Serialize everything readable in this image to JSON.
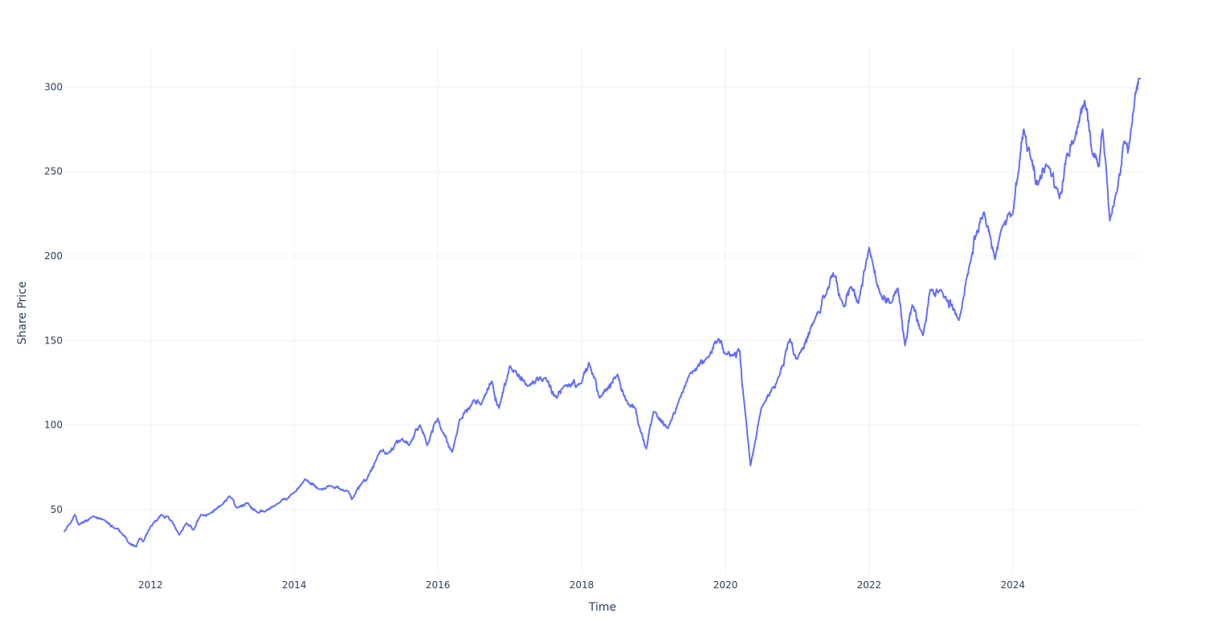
{
  "chart_data": {
    "type": "line",
    "title": "",
    "xlabel": "Time",
    "ylabel": "Share Price",
    "xlim": [
      2010.8,
      2025.78
    ],
    "ylim": [
      12,
      323
    ],
    "grid": true,
    "x_ticks": [
      2012,
      2014,
      2016,
      2018,
      2020,
      2022,
      2024
    ],
    "x_tick_labels": [
      "2012",
      "2014",
      "2016",
      "2018",
      "2020",
      "2022",
      "2024"
    ],
    "y_ticks": [
      50,
      100,
      150,
      200,
      250,
      300
    ],
    "y_tick_labels": [
      "50",
      "100",
      "150",
      "200",
      "250",
      "300"
    ],
    "series": [
      {
        "color": "#636efa",
        "x": [
          2010.8,
          2010.9,
          2010.95,
          2011.0,
          2011.2,
          2011.35,
          2011.5,
          2011.6,
          2011.7,
          2011.8,
          2011.85,
          2011.9,
          2012.0,
          2012.1,
          2012.15,
          2012.3,
          2012.4,
          2012.5,
          2012.6,
          2012.7,
          2012.8,
          2013.0,
          2013.1,
          2013.2,
          2013.35,
          2013.5,
          2013.6,
          2013.75,
          2014.0,
          2014.15,
          2014.35,
          2014.5,
          2014.75,
          2014.8,
          2014.95,
          2015.0,
          2015.2,
          2015.3,
          2015.5,
          2015.6,
          2015.75,
          2015.85,
          2016.0,
          2016.05,
          2016.2,
          2016.3,
          2016.5,
          2016.6,
          2016.75,
          2016.85,
          2017.0,
          2017.25,
          2017.5,
          2017.65,
          2017.75,
          2018.0,
          2018.1,
          2018.25,
          2018.5,
          2018.65,
          2018.75,
          2018.82,
          2018.9,
          2019.0,
          2019.2,
          2019.35,
          2019.5,
          2019.75,
          2019.9,
          2020.0,
          2020.1,
          2020.2,
          2020.25,
          2020.35,
          2020.5,
          2020.75,
          2020.9,
          2021.0,
          2021.25,
          2021.4,
          2021.5,
          2021.65,
          2021.75,
          2021.85,
          2022.0,
          2022.15,
          2022.3,
          2022.4,
          2022.5,
          2022.6,
          2022.75,
          2022.85,
          2023.0,
          2023.25,
          2023.4,
          2023.5,
          2023.6,
          2023.75,
          2023.85,
          2024.0,
          2024.1,
          2024.15,
          2024.25,
          2024.35,
          2024.5,
          2024.65,
          2024.75,
          2024.85,
          2025.0,
          2025.1,
          2025.2,
          2025.25,
          2025.35,
          2025.45,
          2025.55,
          2025.6,
          2025.7,
          2025.77
        ],
        "y": [
          37,
          43,
          47,
          41,
          46,
          44,
          39,
          36,
          30,
          28,
          33,
          31,
          40,
          44,
          47,
          43,
          35,
          42,
          38,
          47,
          47,
          53,
          58,
          51,
          54,
          48,
          49,
          53,
          60,
          68,
          62,
          64,
          61,
          56,
          66,
          67,
          85,
          83,
          92,
          88,
          100,
          88,
          104,
          97,
          84,
          103,
          115,
          112,
          126,
          110,
          135,
          123,
          128,
          116,
          123,
          125,
          137,
          116,
          130,
          112,
          110,
          96,
          86,
          108,
          98,
          114,
          130,
          140,
          151,
          142,
          141,
          144,
          118,
          76,
          110,
          129,
          151,
          139,
          163,
          177,
          190,
          170,
          182,
          172,
          205,
          178,
          172,
          181,
          147,
          171,
          153,
          180,
          180,
          162,
          195,
          215,
          226,
          198,
          217,
          225,
          258,
          275,
          258,
          242,
          253,
          234,
          260,
          268,
          292,
          262,
          253,
          275,
          221,
          238,
          268,
          261,
          295,
          305
        ]
      }
    ]
  }
}
